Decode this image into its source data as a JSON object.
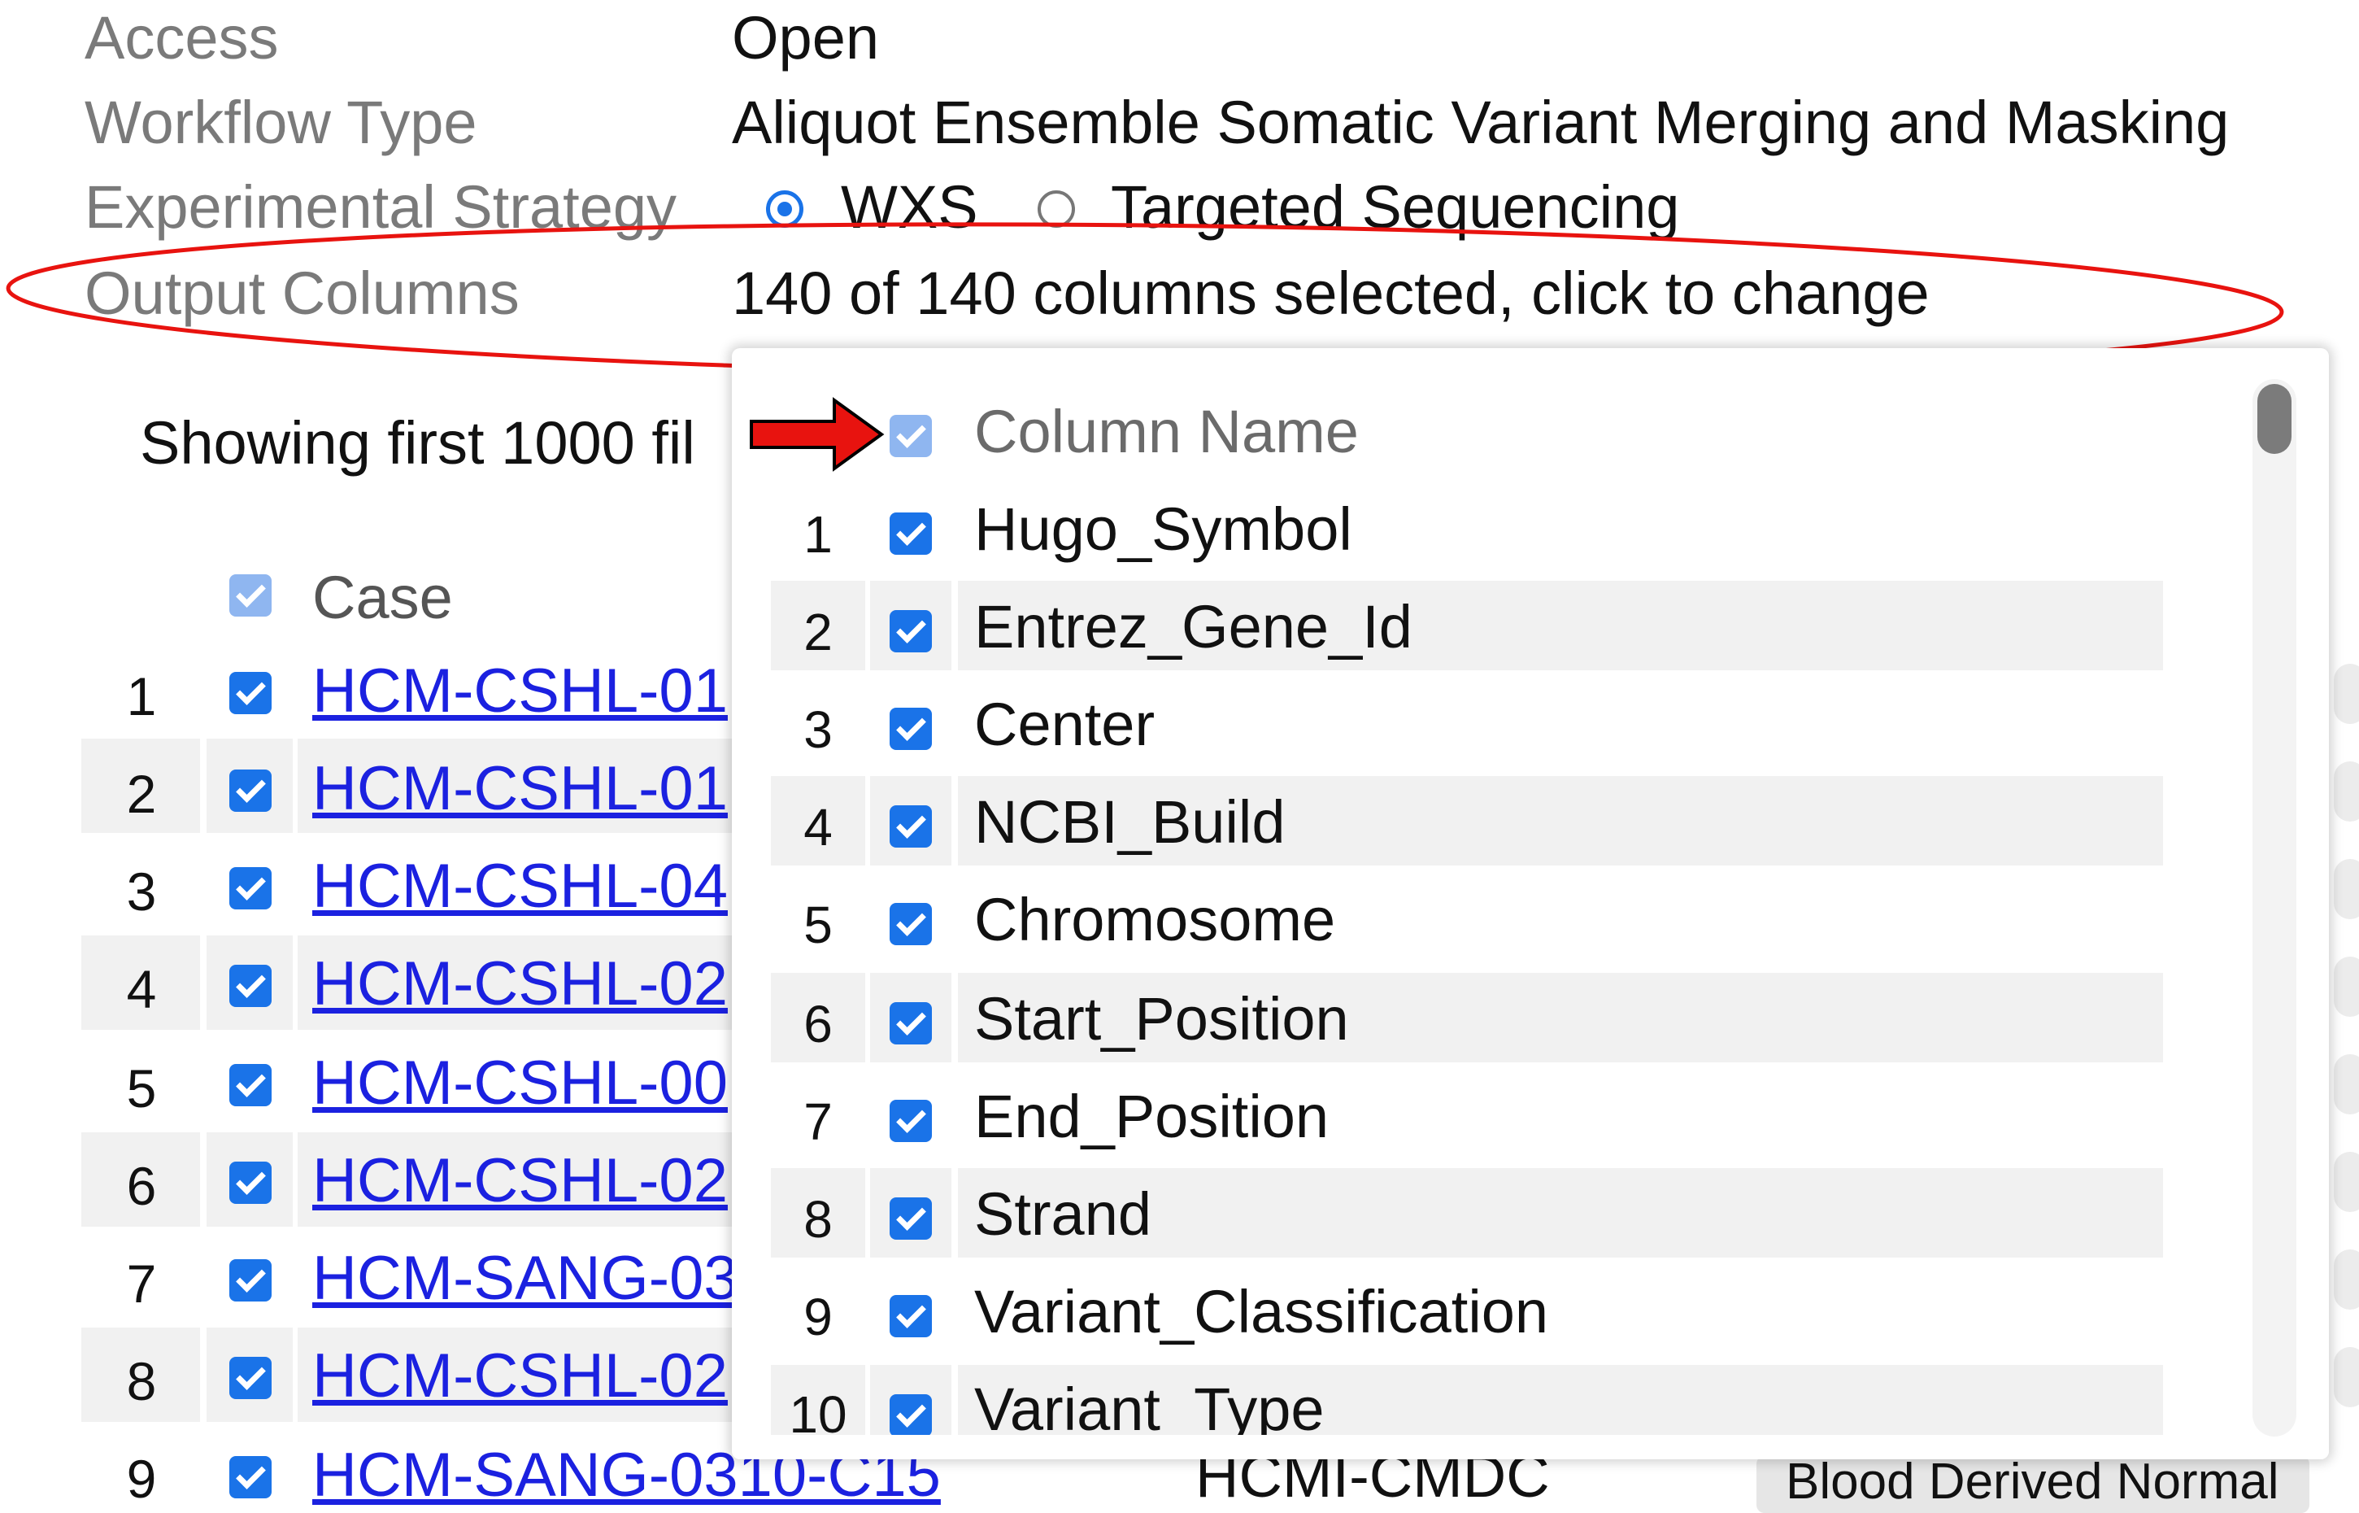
{
  "metadata": {
    "access": {
      "label": "Access",
      "value": "Open"
    },
    "workflow_type": {
      "label": "Workflow Type",
      "value": "Aliquot Ensemble Somatic Variant Merging and Masking"
    },
    "experimental_strategy": {
      "label": "Experimental Strategy",
      "options": [
        {
          "label": "WXS",
          "selected": true
        },
        {
          "label": "Targeted Sequencing",
          "selected": false
        }
      ]
    },
    "output_columns": {
      "label": "Output Columns",
      "value": "140 of 140 columns selected, click to change"
    }
  },
  "files": {
    "showing_text": "Showing first 1000 fil",
    "case_header": "Case",
    "rows": [
      {
        "num": "1",
        "case": "HCM-CSHL-01"
      },
      {
        "num": "2",
        "case": "HCM-CSHL-01"
      },
      {
        "num": "3",
        "case": "HCM-CSHL-04"
      },
      {
        "num": "4",
        "case": "HCM-CSHL-02"
      },
      {
        "num": "5",
        "case": "HCM-CSHL-00"
      },
      {
        "num": "6",
        "case": "HCM-CSHL-02"
      },
      {
        "num": "7",
        "case": "HCM-SANG-03"
      },
      {
        "num": "8",
        "case": "HCM-CSHL-02"
      },
      {
        "num": "9",
        "case": "HCM-SANG-0310-C15",
        "project": "HCMI-CMDC",
        "sample_type": "Blood Derived Normal"
      }
    ]
  },
  "column_picker": {
    "header": "Column Name",
    "columns": [
      {
        "num": "1",
        "name": "Hugo_Symbol"
      },
      {
        "num": "2",
        "name": "Entrez_Gene_Id"
      },
      {
        "num": "3",
        "name": "Center"
      },
      {
        "num": "4",
        "name": "NCBI_Build"
      },
      {
        "num": "5",
        "name": "Chromosome"
      },
      {
        "num": "6",
        "name": "Start_Position"
      },
      {
        "num": "7",
        "name": "End_Position"
      },
      {
        "num": "8",
        "name": "Strand"
      },
      {
        "num": "9",
        "name": "Variant_Classification"
      },
      {
        "num": "10",
        "name": "Variant_Type"
      }
    ]
  },
  "colors": {
    "accent": "#1a73e8",
    "link": "#1b21e0",
    "annotation_red": "#e8130f"
  }
}
